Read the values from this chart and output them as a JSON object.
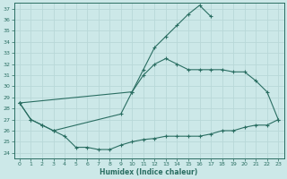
{
  "bg_color": "#cce8e8",
  "grid_color": "#b8d8d8",
  "line_color": "#2a6e62",
  "xlabel": "Humidex (Indice chaleur)",
  "xlim": [
    -0.5,
    23.5
  ],
  "ylim": [
    23.5,
    37.5
  ],
  "yticks": [
    24,
    25,
    26,
    27,
    28,
    29,
    30,
    31,
    32,
    33,
    34,
    35,
    36,
    37
  ],
  "xticks": [
    0,
    1,
    2,
    3,
    4,
    5,
    6,
    7,
    8,
    9,
    10,
    11,
    12,
    13,
    14,
    15,
    16,
    17,
    18,
    19,
    20,
    21,
    22,
    23
  ],
  "hours": [
    0,
    1,
    2,
    3,
    4,
    5,
    6,
    7,
    8,
    9,
    10,
    11,
    12,
    13,
    14,
    15,
    16,
    17,
    18,
    19,
    20,
    21,
    22,
    23
  ],
  "line_top": [
    28.5,
    null,
    null,
    null,
    null,
    null,
    null,
    null,
    null,
    null,
    29.5,
    31.5,
    33.5,
    34.5,
    35.5,
    36.5,
    37.3,
    36.3,
    null,
    null,
    null,
    null,
    null,
    null
  ],
  "line_mid": [
    28.5,
    27.0,
    26.5,
    26.0,
    null,
    null,
    null,
    null,
    null,
    27.5,
    29.5,
    31.0,
    32.0,
    32.5,
    32.0,
    31.5,
    31.5,
    31.5,
    31.5,
    31.3,
    31.3,
    30.5,
    29.5,
    27.0
  ],
  "line_bot": [
    28.5,
    27.0,
    26.5,
    26.0,
    25.5,
    24.5,
    24.5,
    24.3,
    24.3,
    24.7,
    25.0,
    25.2,
    25.3,
    25.5,
    25.5,
    25.5,
    25.5,
    25.7,
    26.0,
    26.0,
    26.3,
    26.5,
    26.5,
    27.0
  ]
}
